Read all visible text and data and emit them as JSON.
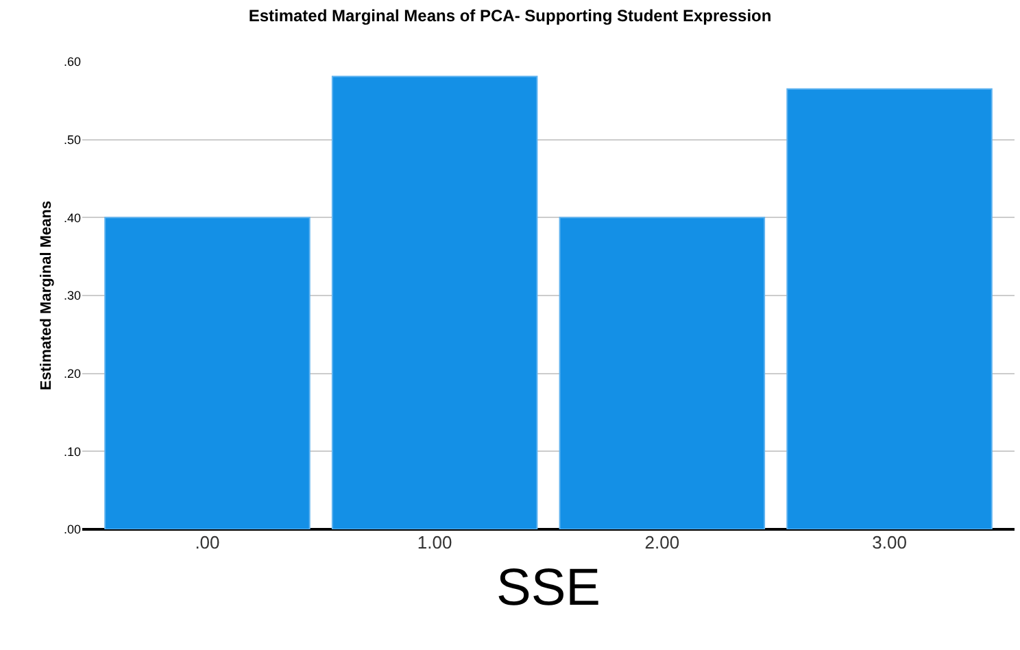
{
  "chart_data": {
    "type": "bar",
    "title": "Estimated Marginal Means of PCA- Supporting Student Expression",
    "xlabel": "SSE",
    "ylabel": "Estimated Marginal Means",
    "categories": [
      ".00",
      "1.00",
      "2.00",
      "3.00"
    ],
    "values": [
      0.4,
      0.581,
      0.4,
      0.565
    ],
    "color": "#1490e6",
    "ylim": [
      0,
      0.6
    ],
    "yticks": [
      {
        "value": 0,
        "label": ".00"
      },
      {
        "value": 0.1,
        "label": ".10"
      },
      {
        "value": 0.2,
        "label": ".20"
      },
      {
        "value": 0.3,
        "label": ".30"
      },
      {
        "value": 0.4,
        "label": ".40"
      },
      {
        "value": 0.5,
        "label": ".50"
      },
      {
        "value": 0.6,
        "label": ".60"
      }
    ],
    "grid": "y"
  }
}
